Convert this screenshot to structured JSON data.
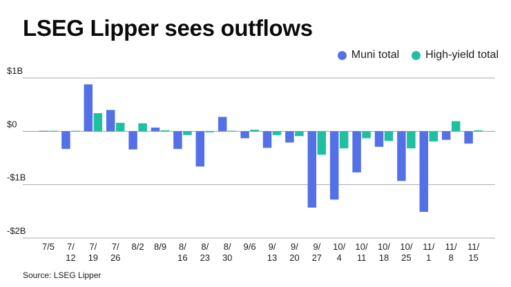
{
  "chart_data": {
    "type": "bar",
    "title": "LSEG Lipper sees outflows",
    "source": "Source: LSEG Lipper",
    "categories": [
      "7/5",
      "7/12",
      "7/19",
      "7/26",
      "8/2",
      "8/9",
      "8/16",
      "8/23",
      "8/30",
      "9/6",
      "9/13",
      "9/20",
      "9/27",
      "10/4",
      "10/11",
      "10/18",
      "10/25",
      "11/1",
      "11/8",
      "11/15"
    ],
    "category_lines": [
      [
        "7/5"
      ],
      [
        "7/",
        "12"
      ],
      [
        "7/",
        "19"
      ],
      [
        "7/",
        "26"
      ],
      [
        "8/2"
      ],
      [
        "8/9"
      ],
      [
        "8/",
        "16"
      ],
      [
        "8/",
        "23"
      ],
      [
        "8/",
        "30"
      ],
      [
        "9/6"
      ],
      [
        "9/",
        "13"
      ],
      [
        "9/",
        "20"
      ],
      [
        "9/",
        "27"
      ],
      [
        "10/",
        "4"
      ],
      [
        "10/",
        "11"
      ],
      [
        "10/",
        "18"
      ],
      [
        "10/",
        "25"
      ],
      [
        "11/",
        "1"
      ],
      [
        "11/",
        "8"
      ],
      [
        "11/",
        "15"
      ]
    ],
    "series": [
      {
        "name": "Muni total",
        "color": "#5470e6",
        "values": [
          0.01,
          -0.33,
          0.88,
          0.4,
          -0.34,
          0.07,
          -0.33,
          -0.66,
          0.27,
          -0.13,
          -0.31,
          -0.21,
          -1.43,
          -1.28,
          -0.77,
          -0.29,
          -0.93,
          -1.51,
          -0.16,
          -0.23
        ]
      },
      {
        "name": "High-yield total",
        "color": "#1fc0a0",
        "values": [
          0.01,
          0.01,
          0.34,
          0.16,
          0.15,
          0.02,
          -0.07,
          -0.02,
          0.01,
          0.03,
          -0.07,
          -0.09,
          -0.44,
          -0.32,
          -0.13,
          -0.18,
          -0.32,
          -0.19,
          0.19,
          0.02
        ]
      }
    ],
    "y_ticks": [
      1,
      0,
      -1,
      -2
    ],
    "y_tick_labels": [
      "$1B",
      "$0",
      "-$1B",
      "-$2B"
    ],
    "ylim": [
      -2,
      1
    ],
    "grid": true,
    "legend_position": "top-right"
  }
}
